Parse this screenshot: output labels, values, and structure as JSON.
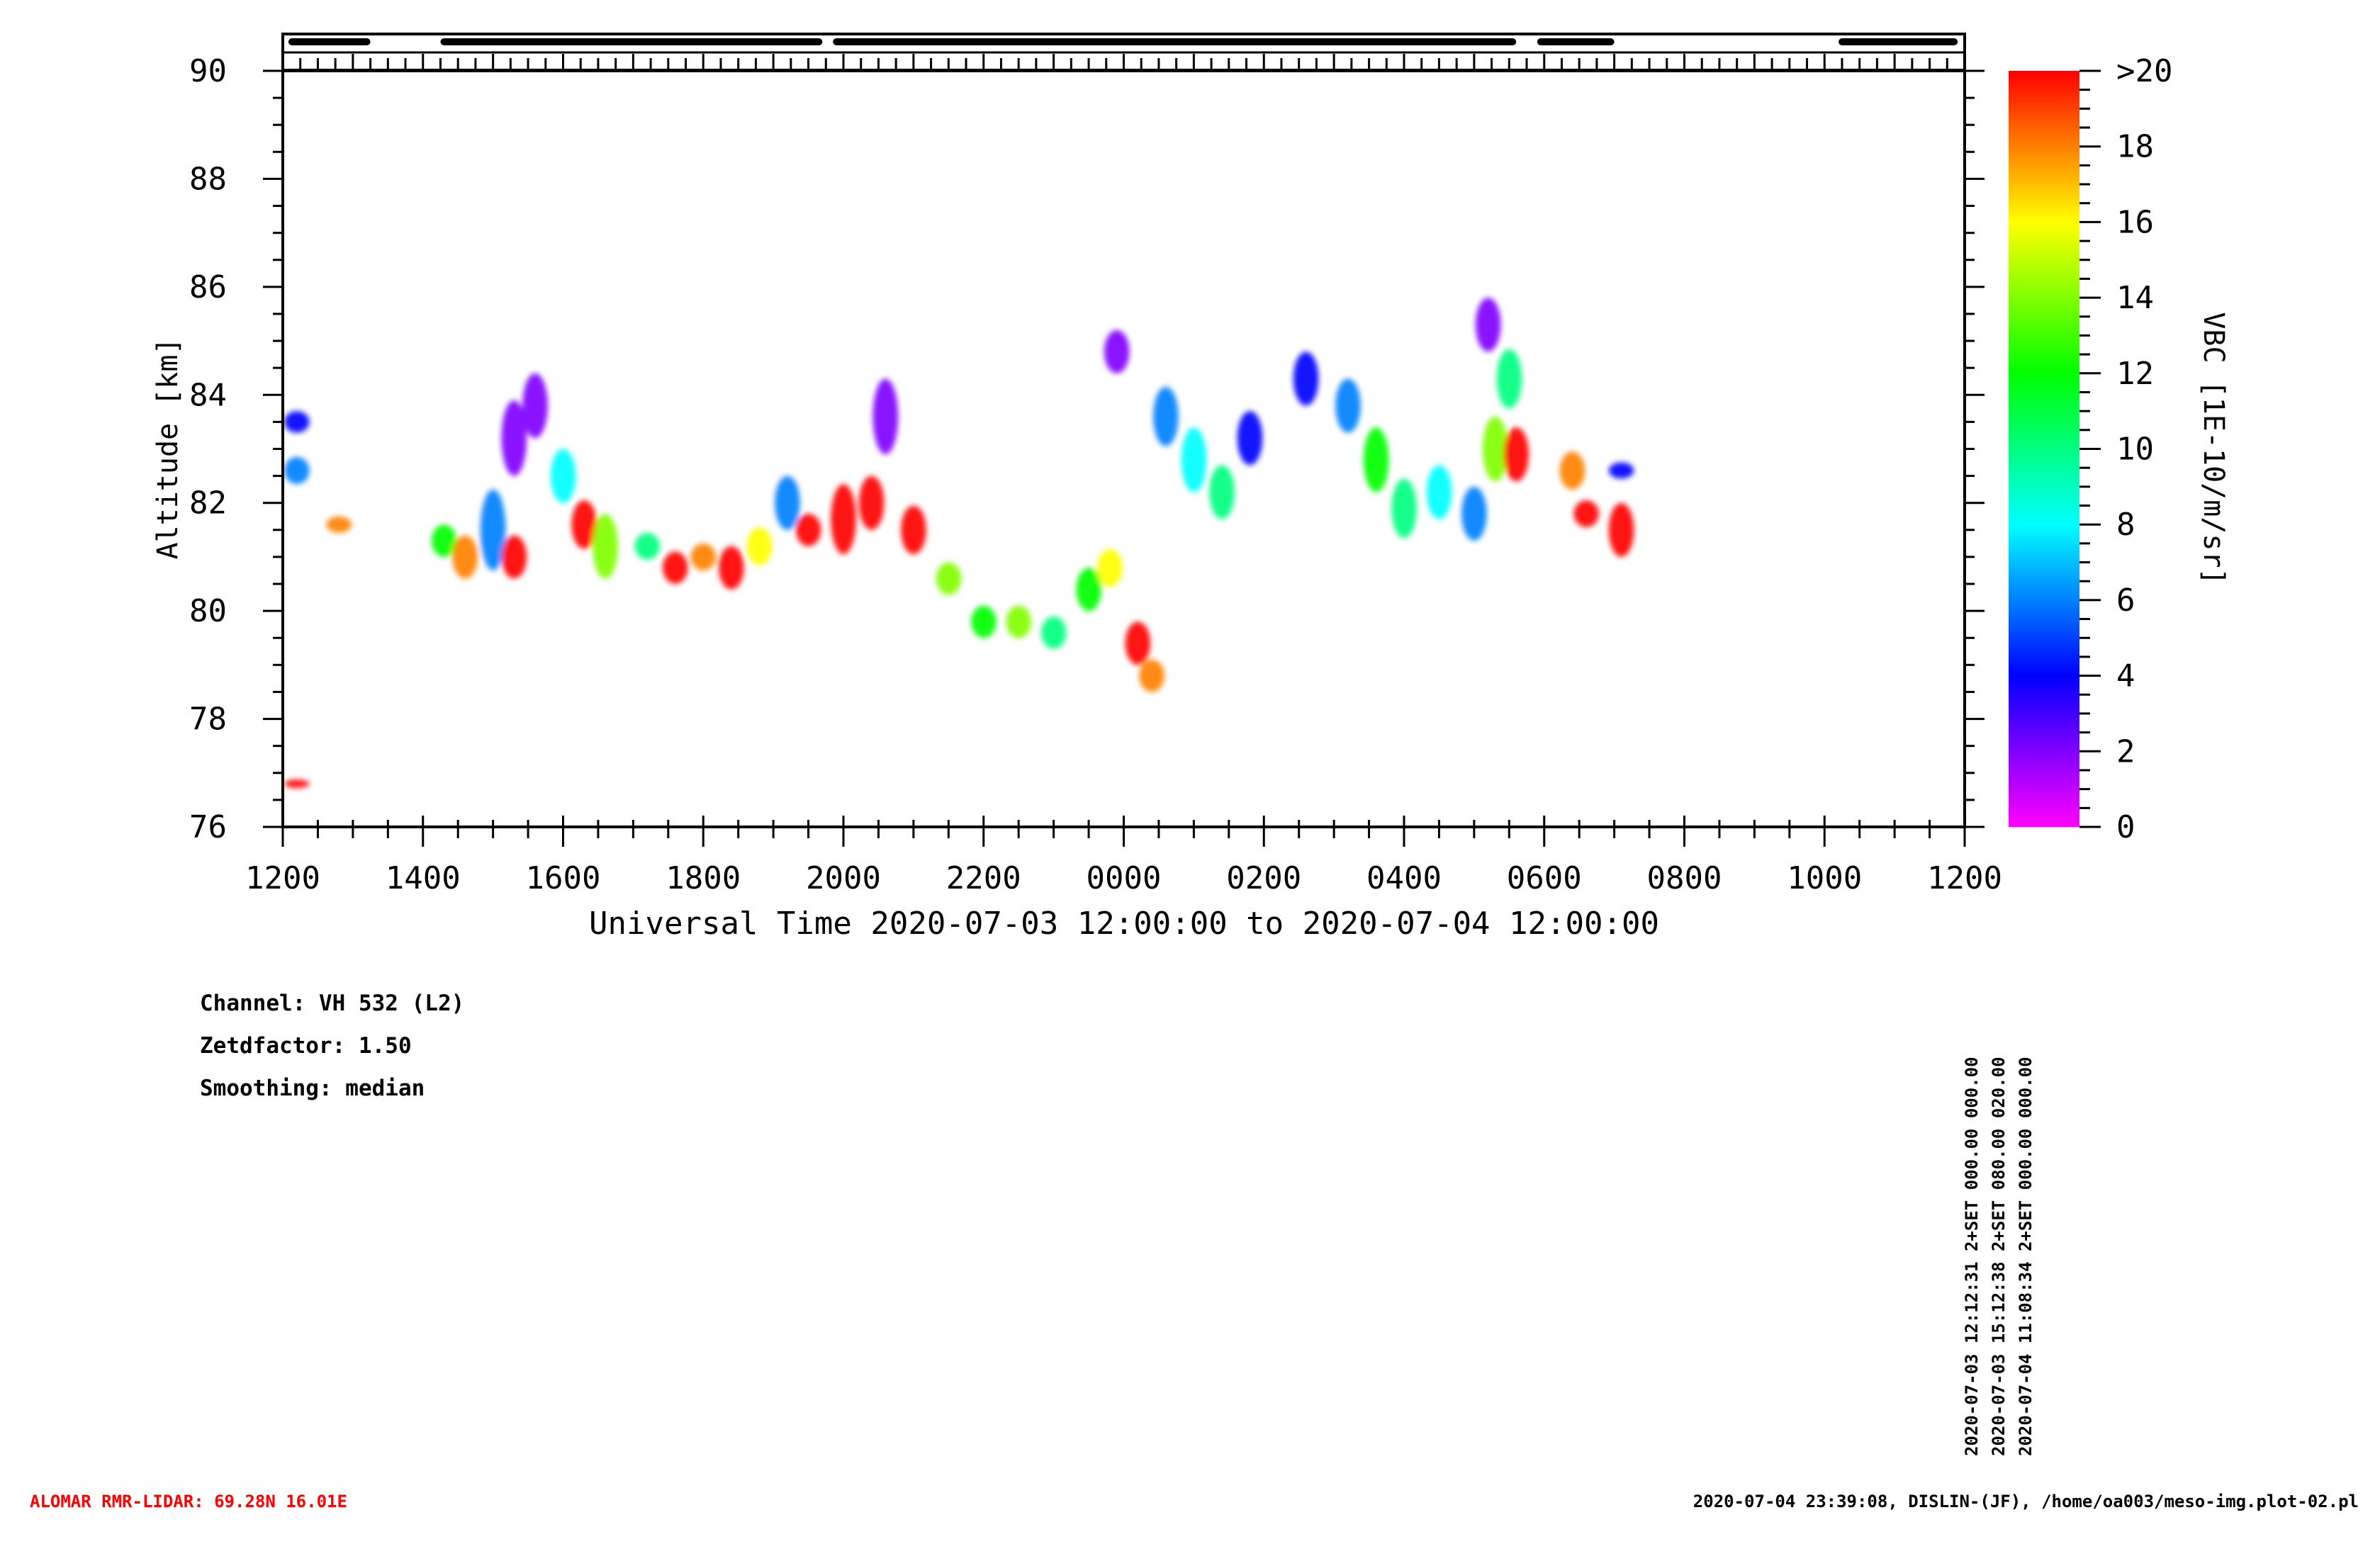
{
  "chart_data": {
    "type": "heatmap",
    "xlabel": "Universal Time 2020-07-03 12:00:00 to 2020-07-04 12:00:00",
    "ylabel": "Altitude [km]",
    "x_ticks": [
      "1200",
      "1400",
      "1600",
      "1800",
      "2000",
      "2200",
      "0000",
      "0200",
      "0400",
      "0600",
      "0800",
      "1000",
      "1200"
    ],
    "x_range_hours": [
      12,
      36
    ],
    "y_ticks": [
      76,
      78,
      80,
      82,
      84,
      86,
      88,
      90
    ],
    "ylim": [
      76,
      90
    ],
    "colorbar": {
      "label": "VBC [1E-10/m/sr]",
      "ticks": [
        "0",
        "2",
        "4",
        "6",
        "8",
        "10",
        "12",
        "14",
        "16",
        "18",
        ">20"
      ],
      "range": [
        0,
        20
      ],
      "colors": [
        "#ff00ff",
        "#8000ff",
        "#0000ff",
        "#0080ff",
        "#00ffff",
        "#00ff80",
        "#00ff00",
        "#80ff00",
        "#ffff00",
        "#ff8000",
        "#ff0000"
      ]
    },
    "measurement_periods": [
      [
        12.08,
        13.25
      ],
      [
        14.25,
        19.7
      ],
      [
        19.85,
        29.6
      ],
      [
        29.9,
        31.0
      ],
      [
        34.2,
        35.9
      ]
    ],
    "layers": [
      {
        "name": "",
        "points": [
          [
            12.2,
            82.6,
            0.5,
            6
          ],
          [
            12.2,
            83.5,
            0.4,
            4
          ],
          [
            12.8,
            81.6,
            0.3,
            18
          ],
          [
            12.2,
            76.8,
            0.1,
            20
          ]
        ]
      },
      {
        "name": "",
        "points": [
          [
            14.3,
            81.3,
            0.6,
            12
          ],
          [
            14.6,
            81.0,
            0.8,
            18
          ],
          [
            15.0,
            81.5,
            1.5,
            6
          ],
          [
            15.3,
            81.0,
            0.8,
            20
          ],
          [
            15.3,
            83.2,
            1.4,
            2
          ],
          [
            15.6,
            83.8,
            1.2,
            1
          ],
          [
            16.0,
            82.5,
            1.0,
            8
          ],
          [
            16.3,
            81.6,
            0.9,
            20
          ],
          [
            16.6,
            81.2,
            1.2,
            14
          ],
          [
            17.2,
            81.2,
            0.5,
            10
          ],
          [
            17.6,
            80.8,
            0.6,
            20
          ],
          [
            18.0,
            81.0,
            0.5,
            18
          ],
          [
            18.4,
            80.8,
            0.8,
            20
          ],
          [
            18.8,
            81.2,
            0.7,
            16
          ],
          [
            19.2,
            82.0,
            1.0,
            5
          ],
          [
            19.5,
            81.5,
            0.6,
            20
          ]
        ]
      },
      {
        "name": "",
        "points": [
          [
            20.0,
            81.7,
            1.3,
            20
          ],
          [
            20.4,
            82.0,
            1.0,
            20
          ],
          [
            20.6,
            83.6,
            1.4,
            1
          ],
          [
            21.0,
            81.5,
            0.9,
            20
          ],
          [
            21.5,
            80.6,
            0.6,
            14
          ],
          [
            22.0,
            79.8,
            0.6,
            12
          ],
          [
            22.5,
            79.8,
            0.6,
            14
          ],
          [
            23.0,
            79.6,
            0.6,
            10
          ],
          [
            23.5,
            80.4,
            0.8,
            12
          ],
          [
            23.8,
            80.8,
            0.7,
            16
          ],
          [
            24.2,
            79.4,
            0.8,
            20
          ],
          [
            24.4,
            78.8,
            0.6,
            18
          ]
        ]
      },
      {
        "name": "",
        "points": [
          [
            23.9,
            84.8,
            0.8,
            1
          ],
          [
            24.6,
            83.6,
            1.1,
            5
          ],
          [
            25.0,
            82.8,
            1.2,
            8
          ],
          [
            25.4,
            82.2,
            1.0,
            10
          ],
          [
            25.8,
            83.2,
            1.0,
            4
          ],
          [
            26.6,
            84.3,
            1.0,
            3
          ],
          [
            27.2,
            83.8,
            1.0,
            6
          ],
          [
            27.6,
            82.8,
            1.2,
            12
          ],
          [
            28.0,
            81.9,
            1.1,
            10
          ],
          [
            28.5,
            82.2,
            1.0,
            8
          ],
          [
            29.0,
            81.8,
            1.0,
            6
          ],
          [
            29.3,
            83.0,
            1.2,
            14
          ],
          [
            29.6,
            82.9,
            1.0,
            20
          ],
          [
            29.5,
            84.3,
            1.1,
            10
          ],
          [
            29.2,
            85.3,
            1.0,
            2
          ]
        ]
      },
      {
        "name": "",
        "points": [
          [
            30.4,
            82.6,
            0.7,
            18
          ],
          [
            30.6,
            81.8,
            0.5,
            20
          ],
          [
            31.1,
            81.5,
            1.0,
            20
          ],
          [
            31.1,
            82.6,
            0.3,
            4
          ]
        ]
      }
    ]
  },
  "info": {
    "channel": "Channel: VH 532 (L2)",
    "zetdfactor": "Zetdfactor: 1.50",
    "smoothing": "Smoothing: median"
  },
  "runs": [
    "2020-07-03 12:12:31 2+SET 000.00 000.00",
    "2020-07-03 15:12:38 2+SET 080.00 020.00",
    "2020-07-04 11:08:34 2+SET 000.00 000.00"
  ],
  "footer": {
    "station": "ALOMAR RMR-LIDAR: 69.28N 16.01E",
    "source": "2020-07-04 23:39:08, DISLIN-(JF), /home/oa003/meso-img.plot-02.pl"
  }
}
